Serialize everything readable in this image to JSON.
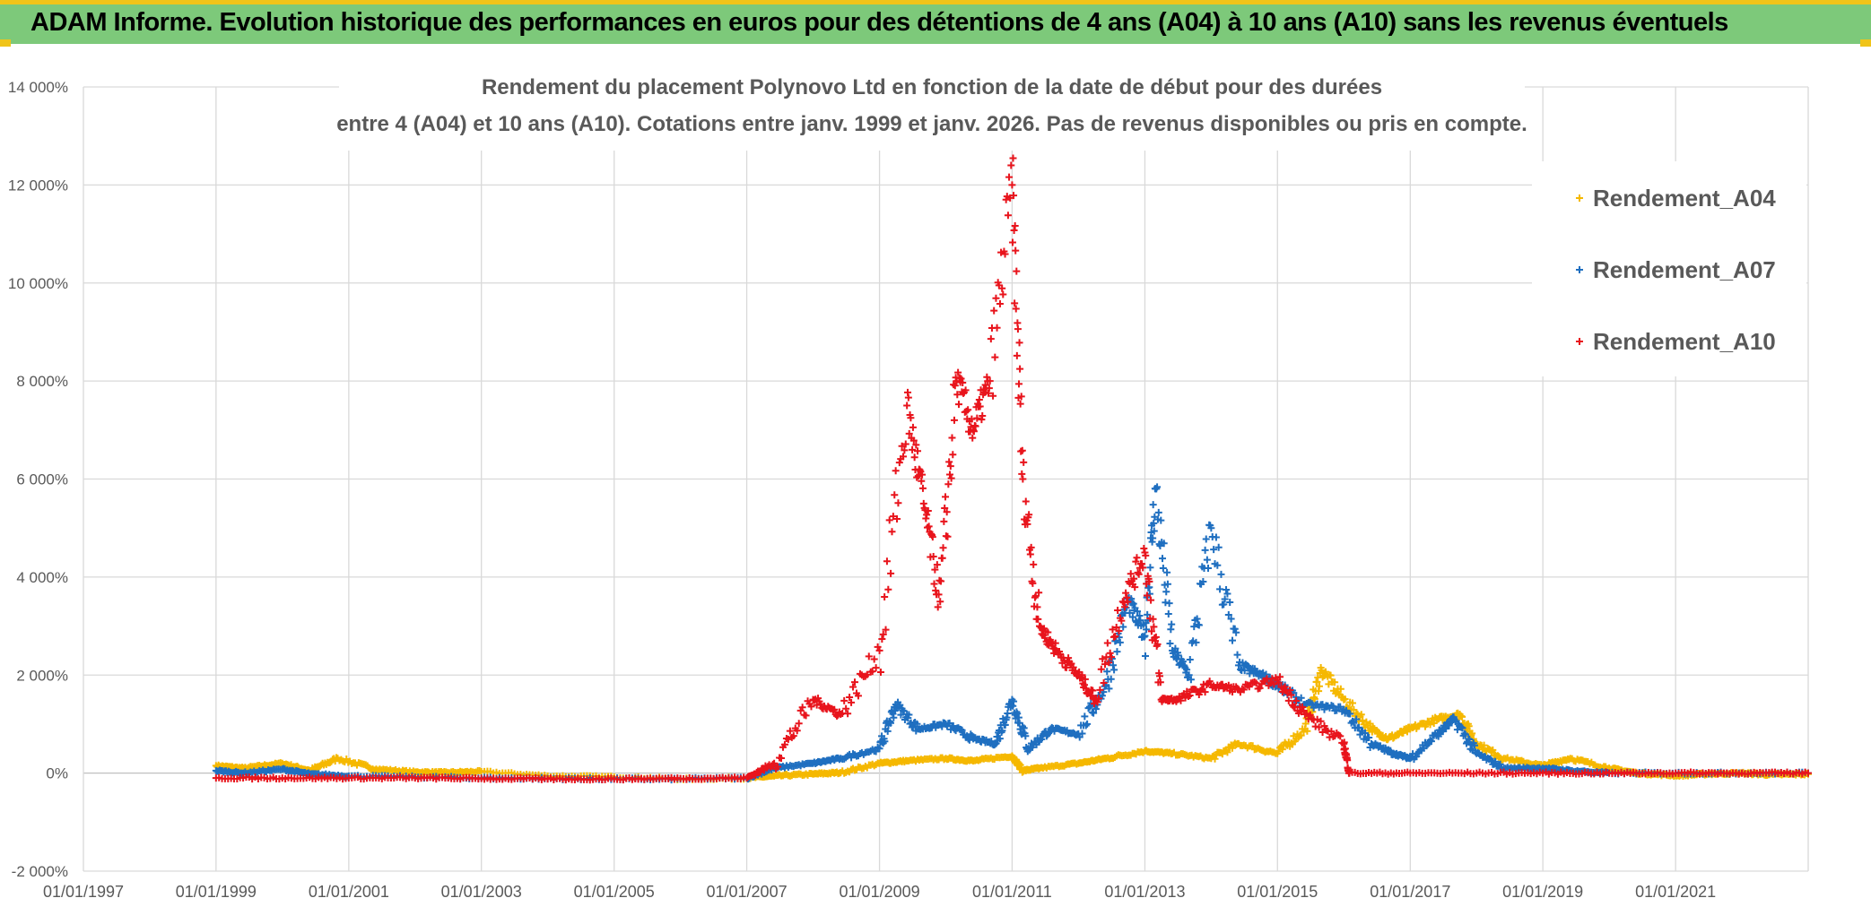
{
  "header": {
    "title": "ADAM Informe. Evolution historique des performances en euros pour des détentions de 4 ans (A04) à 10 ans (A10) sans les revenus éventuels",
    "background": "#7dc97a",
    "accent": "#f0c419"
  },
  "chart_data": {
    "type": "scatter",
    "title_line1": "Rendement du placement Polynovo Ltd en fonction de la date de début pour des durées",
    "title_line2": "entre 4 (A04) et 10 ans (A10). Cotations entre janv. 1999 et janv. 2026. Pas de revenus disponibles ou pris en compte.",
    "xlabel": "",
    "ylabel": "",
    "x_range": [
      "1997-01-01",
      "2023-01-01"
    ],
    "ylim": [
      -2000,
      14000
    ],
    "y_ticks": [
      "-2 000%",
      "0%",
      "2 000%",
      "4 000%",
      "6 000%",
      "8 000%",
      "10 000%",
      "12 000%",
      "14 000%"
    ],
    "x_ticks": [
      "01/01/1997",
      "01/01/1999",
      "01/01/2001",
      "01/01/2003",
      "01/01/2005",
      "01/01/2007",
      "01/01/2009",
      "01/01/2011",
      "01/01/2013",
      "01/01/2015",
      "01/01/2017",
      "01/01/2019",
      "01/01/2021"
    ],
    "grid": true,
    "legend_position": "right",
    "marker": "+",
    "series": [
      {
        "name": "Rendement_A04",
        "color": "#f5b800",
        "x": [
          "1999-01-01",
          "1999-06-01",
          "2000-01-01",
          "2000-06-01",
          "2000-11-01",
          "2001-06-01",
          "2002-01-01",
          "2002-06-01",
          "2003-01-01",
          "2004-01-01",
          "2005-01-01",
          "2006-01-01",
          "2007-01-01",
          "2007-06-01",
          "2008-01-01",
          "2008-06-01",
          "2009-01-01",
          "2009-06-01",
          "2010-01-01",
          "2010-06-01",
          "2011-01-01",
          "2011-03-01",
          "2011-06-01",
          "2012-01-01",
          "2012-06-01",
          "2013-01-01",
          "2013-06-01",
          "2014-01-01",
          "2014-06-01",
          "2015-01-01",
          "2015-06-01",
          "2015-09-01",
          "2016-01-01",
          "2016-06-01",
          "2016-09-01",
          "2017-01-01",
          "2017-06-01",
          "2017-10-01",
          "2018-01-01",
          "2018-06-01",
          "2019-01-01",
          "2019-06-01",
          "2020-01-01",
          "2020-06-01",
          "2021-01-01",
          "2021-06-01",
          "2022-01-01",
          "2022-06-01",
          "2023-01-01"
        ],
        "y": [
          150,
          100,
          200,
          50,
          300,
          80,
          20,
          10,
          30,
          -60,
          -80,
          -120,
          -100,
          -60,
          -20,
          10,
          200,
          250,
          300,
          250,
          350,
          50,
          100,
          200,
          300,
          450,
          400,
          300,
          600,
          400,
          900,
          2100,
          1500,
          900,
          700,
          900,
          1100,
          1200,
          600,
          300,
          150,
          300,
          100,
          0,
          -50,
          -20,
          0,
          -30,
          -20
        ]
      },
      {
        "name": "Rendement_A07",
        "color": "#1f6fc0",
        "x": [
          "1999-01-01",
          "1999-06-01",
          "2000-01-01",
          "2000-06-01",
          "2001-01-01",
          "2002-01-01",
          "2003-01-01",
          "2004-01-01",
          "2005-01-01",
          "2006-01-01",
          "2007-01-01",
          "2007-06-01",
          "2008-01-01",
          "2008-06-01",
          "2009-01-01",
          "2009-04-01",
          "2009-08-01",
          "2010-01-01",
          "2010-06-01",
          "2010-10-01",
          "2011-01-01",
          "2011-04-01",
          "2011-08-01",
          "2012-01-01",
          "2012-06-01",
          "2012-10-01",
          "2013-01-01",
          "2013-03-01",
          "2013-06-01",
          "2013-09-01",
          "2014-01-01",
          "2014-06-01",
          "2014-10-01",
          "2015-01-01",
          "2015-06-01",
          "2016-01-01",
          "2016-06-01",
          "2016-10-01",
          "2017-01-01",
          "2017-06-01",
          "2017-09-01",
          "2018-01-01",
          "2018-06-01",
          "2019-01-01",
          "2019-06-01",
          "2020-01-01",
          "2021-01-01",
          "2022-01-01",
          "2023-01-01"
        ],
        "y": [
          50,
          0,
          80,
          -20,
          -60,
          -80,
          -100,
          -110,
          -120,
          -120,
          -100,
          100,
          200,
          300,
          500,
          1400,
          900,
          1000,
          700,
          600,
          1500,
          500,
          900,
          800,
          1800,
          3500,
          2800,
          5800,
          2500,
          2000,
          5000,
          2200,
          2000,
          1800,
          1400,
          1300,
          600,
          400,
          300,
          800,
          1100,
          400,
          100,
          100,
          50,
          0,
          0,
          0,
          0
        ]
      },
      {
        "name": "Rendement_A10",
        "color": "#e8141c",
        "x": [
          "1999-01-01",
          "2000-01-01",
          "2001-01-01",
          "2002-01-01",
          "2003-01-01",
          "2004-01-01",
          "2005-01-01",
          "2006-01-01",
          "2007-01-01",
          "2007-06-01",
          "2008-01-01",
          "2008-06-01",
          "2009-01-01",
          "2009-06-01",
          "2009-09-01",
          "2009-12-01",
          "2010-03-01",
          "2010-06-01",
          "2010-09-01",
          "2011-01-01",
          "2011-03-01",
          "2011-06-01",
          "2011-09-01",
          "2012-01-01",
          "2012-04-01",
          "2012-09-01",
          "2013-01-01",
          "2013-04-01",
          "2013-07-01",
          "2014-01-01",
          "2014-06-01",
          "2015-01-01",
          "2015-06-01",
          "2016-01-01",
          "2016-02-01",
          "2017-01-01",
          "2018-01-01",
          "2019-01-01",
          "2020-01-01",
          "2021-01-01",
          "2022-01-01",
          "2023-01-01"
        ],
        "y": [
          -100,
          -100,
          -100,
          -100,
          -110,
          -120,
          -120,
          -110,
          -100,
          200,
          1500,
          1200,
          2500,
          7500,
          5500,
          3500,
          8000,
          7000,
          8000,
          12000,
          6000,
          3000,
          2500,
          2000,
          1500,
          3500,
          4500,
          1500,
          1500,
          1800,
          1700,
          1900,
          1200,
          600,
          0,
          0,
          0,
          0,
          0,
          0,
          0,
          0
        ]
      }
    ]
  }
}
